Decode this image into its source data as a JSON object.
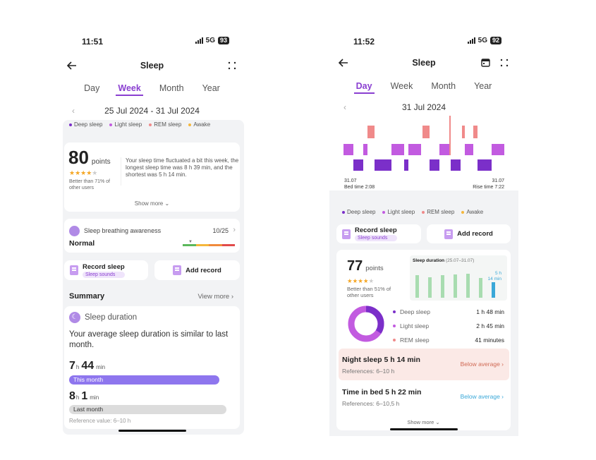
{
  "left": {
    "status": {
      "time": "11:51",
      "network": "5G",
      "battery": "93"
    },
    "header": {
      "title": "Sleep"
    },
    "tabs": [
      {
        "label": "Day"
      },
      {
        "label": "Week"
      },
      {
        "label": "Month"
      },
      {
        "label": "Year"
      }
    ],
    "active_tab": "Week",
    "date_range": "25 Jul 2024 - 31 Jul 2024",
    "legend": [
      {
        "label": "Deep sleep",
        "color": "#7b2fc9"
      },
      {
        "label": "Light sleep",
        "color": "#c25be0"
      },
      {
        "label": "REM sleep",
        "color": "#f08a8a"
      },
      {
        "label": "Awake",
        "color": "#f5b73c"
      }
    ],
    "score": {
      "value": "80",
      "unit": "points",
      "stars": 4,
      "comparison": "Better than 71% of other users",
      "description": "Your sleep time fluctuated a bit this week, the longest sleep time was 8 h 39 min, and the shortest was 5 h 14 min.",
      "show_more": "Show more"
    },
    "breathing": {
      "title": "Sleep breathing awareness",
      "count": "10/25",
      "status": "Normal"
    },
    "record_sleep": {
      "label": "Record sleep",
      "badge": "Sleep sounds"
    },
    "add_record": {
      "label": "Add record"
    },
    "summary": {
      "title": "Summary",
      "view_more": "View more"
    },
    "duration": {
      "title": "Sleep duration",
      "text": "Your average sleep duration is similar to last month.",
      "this_month": {
        "h": "7",
        "h_unit": "h",
        "min": "44",
        "min_unit": "min",
        "label": "This month",
        "fraction": 0.92
      },
      "last_month": {
        "h": "8",
        "h_unit": "h",
        "min": "1",
        "min_unit": "min",
        "label": "Last month",
        "fraction": 0.96
      },
      "reference": "Reference value: 6–10 h"
    }
  },
  "right": {
    "status": {
      "time": "11:52",
      "network": "5G",
      "battery": "92"
    },
    "header": {
      "title": "Sleep"
    },
    "tabs": [
      {
        "label": "Day"
      },
      {
        "label": "Week"
      },
      {
        "label": "Month"
      },
      {
        "label": "Year"
      }
    ],
    "active_tab": "Day",
    "date": "31 Jul 2024",
    "hypnogram": {
      "bed_date": "31.07",
      "bed_time": "Bed time 2:08",
      "rise_date": "31.07",
      "rise_time": "Rise time 7:22"
    },
    "legend": [
      {
        "label": "Deep sleep",
        "color": "#7b2fc9"
      },
      {
        "label": "Light sleep",
        "color": "#c25be0"
      },
      {
        "label": "REM sleep",
        "color": "#f08a8a"
      },
      {
        "label": "Awake",
        "color": "#f5b73c"
      }
    ],
    "record_sleep": {
      "label": "Record sleep",
      "badge": "Sleep sounds"
    },
    "add_record": {
      "label": "Add record"
    },
    "score": {
      "value": "77",
      "unit": "points",
      "stars": 4,
      "comparison": "Better than 51% of other users"
    },
    "mini_chart": {
      "title": "Sleep duration",
      "range": "(25.07–31.07)",
      "label_h": "5 h",
      "label_min": "14 min",
      "values": [
        0.9,
        0.8,
        0.88,
        0.92,
        0.95,
        0.78,
        0.6
      ]
    },
    "breakdown": [
      {
        "label": "Deep sleep",
        "value": "1 h 48 min",
        "color": "#7b2fc9"
      },
      {
        "label": "Light sleep",
        "value": "2 h 45 min",
        "color": "#c25be0"
      },
      {
        "label": "REM sleep",
        "value": "41 minutes",
        "color": "#f08a8a"
      }
    ],
    "night_sleep": {
      "title": "Night sleep 5 h 14 min",
      "ref": "References: 6–10 h",
      "status": "Below average"
    },
    "time_in_bed": {
      "title": "Time in bed 5 h 22 min",
      "ref": "References: 6–10,5 h",
      "status": "Below average"
    },
    "show_more": "Show more"
  }
}
